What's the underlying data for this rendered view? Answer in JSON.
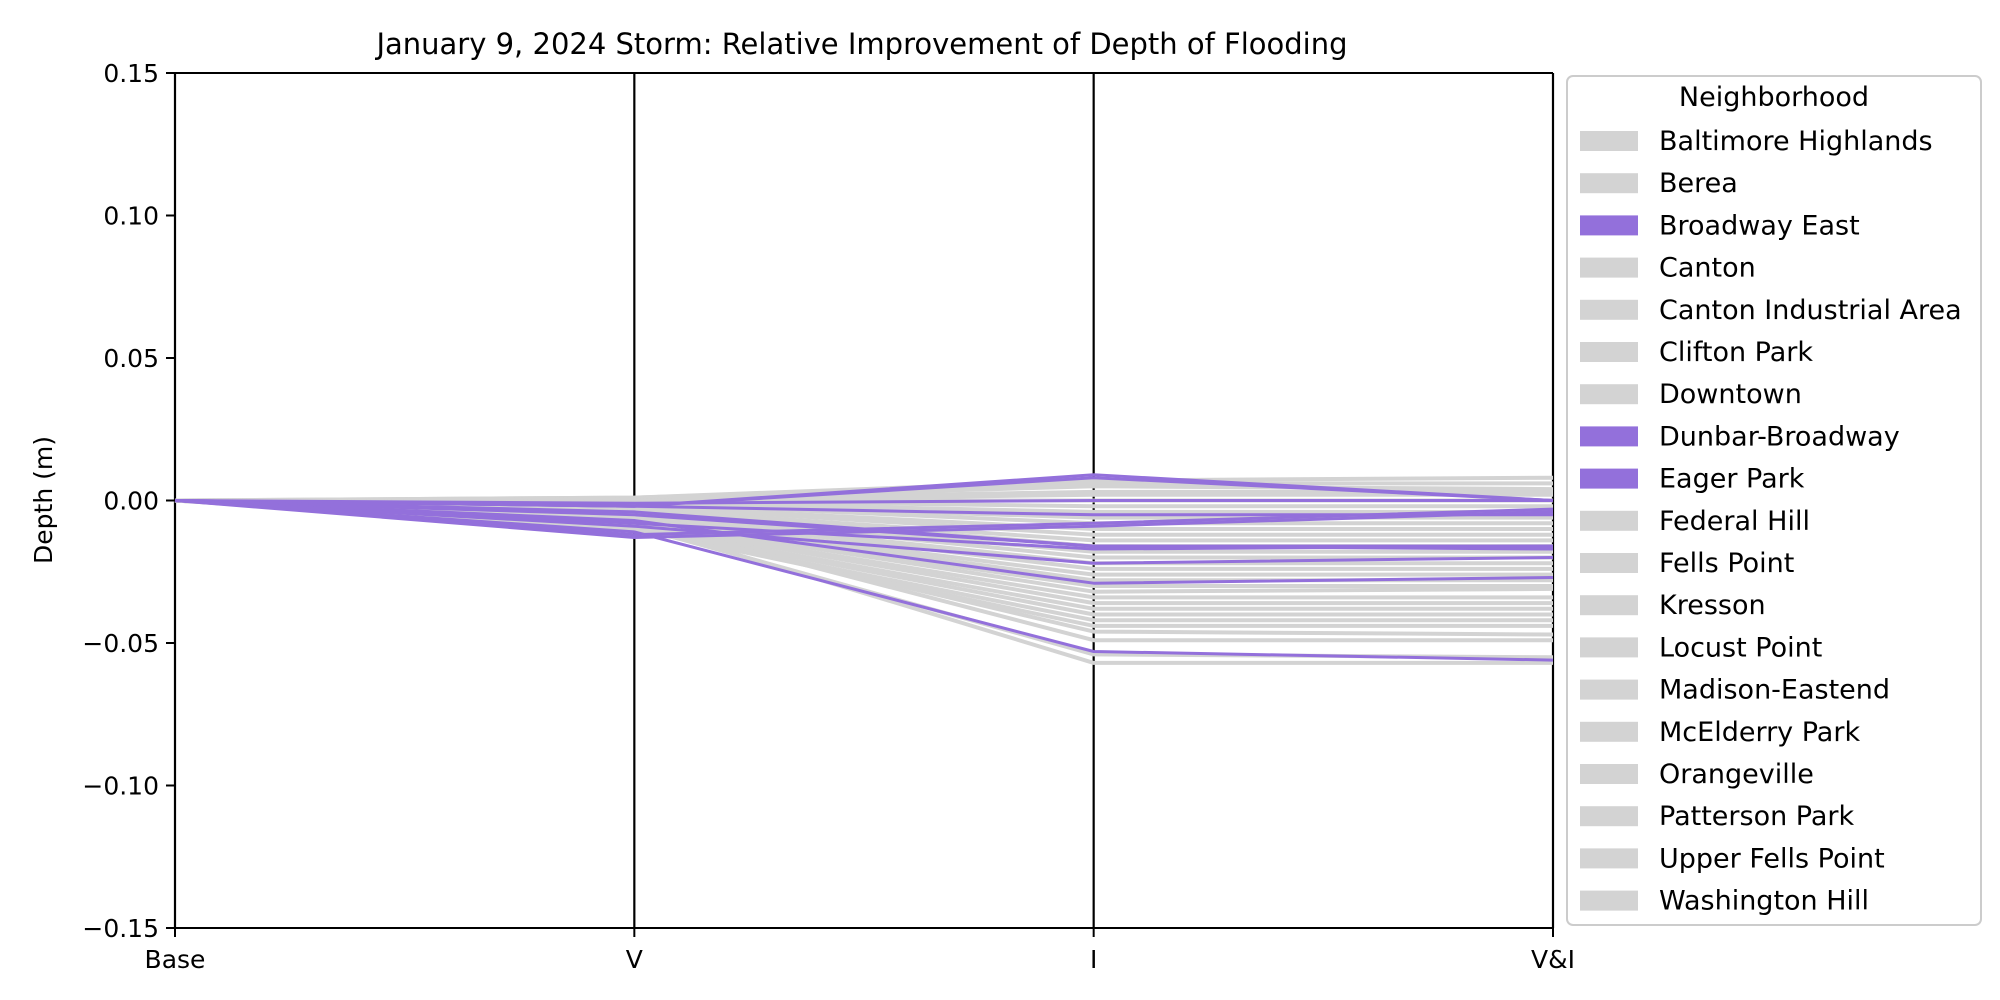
{
  "chart_data": {
    "type": "line",
    "subtype": "parallel-coordinates",
    "title": "January 9, 2024 Storm: Relative Improvement of Depth of Flooding",
    "xlabel": "",
    "ylabel": "Depth (m)",
    "categories": [
      "Base",
      "V",
      "I",
      "V&I"
    ],
    "ylim": [
      -0.15,
      0.15
    ],
    "yticks": [
      0.15,
      0.1,
      0.05,
      0.0,
      -0.05,
      -0.1,
      -0.15
    ],
    "ytick_labels": [
      "0.15",
      "0.10",
      "0.05",
      "0.00",
      "−0.05",
      "−0.10",
      "−0.15"
    ],
    "grid": false,
    "legend_title": "Neighborhood",
    "legend_position": "right",
    "colors": {
      "highlight": "#9370DB",
      "muted": "#D3D3D3",
      "axis": "#000000"
    },
    "legend": [
      {
        "label": "Baltimore Highlands",
        "color": "#D3D3D3"
      },
      {
        "label": "Berea",
        "color": "#D3D3D3"
      },
      {
        "label": "Broadway East",
        "color": "#9370DB"
      },
      {
        "label": "Canton",
        "color": "#D3D3D3"
      },
      {
        "label": "Canton Industrial Area",
        "color": "#D3D3D3"
      },
      {
        "label": "Clifton Park",
        "color": "#D3D3D3"
      },
      {
        "label": "Downtown",
        "color": "#D3D3D3"
      },
      {
        "label": "Dunbar-Broadway",
        "color": "#9370DB"
      },
      {
        "label": "Eager Park",
        "color": "#9370DB"
      },
      {
        "label": "Federal Hill",
        "color": "#D3D3D3"
      },
      {
        "label": "Fells Point",
        "color": "#D3D3D3"
      },
      {
        "label": "Kresson",
        "color": "#D3D3D3"
      },
      {
        "label": "Locust Point",
        "color": "#D3D3D3"
      },
      {
        "label": "Madison-Eastend",
        "color": "#D3D3D3"
      },
      {
        "label": "McElderry Park",
        "color": "#D3D3D3"
      },
      {
        "label": "Orangeville",
        "color": "#D3D3D3"
      },
      {
        "label": "Patterson Park",
        "color": "#D3D3D3"
      },
      {
        "label": "Upper Fells Point",
        "color": "#D3D3D3"
      },
      {
        "label": "Washington Hill",
        "color": "#D3D3D3"
      }
    ],
    "series_gray": [
      [
        0,
        0.001,
        0.007,
        0.008
      ],
      [
        0,
        0.001,
        0.006,
        0.006
      ],
      [
        0,
        0.0005,
        0.005,
        0.004
      ],
      [
        0,
        0.0005,
        0.003,
        0.003
      ],
      [
        0,
        0.0,
        0.002,
        0.002
      ],
      [
        0,
        0.0,
        0.0,
        0.0
      ],
      [
        0,
        0.0,
        -0.002,
        -0.002
      ],
      [
        0,
        -0.0005,
        -0.004,
        -0.004
      ],
      [
        0,
        -0.001,
        -0.006,
        -0.006
      ],
      [
        0,
        -0.001,
        -0.008,
        -0.008
      ],
      [
        0,
        -0.002,
        -0.01,
        -0.01
      ],
      [
        0,
        -0.002,
        -0.012,
        -0.012
      ],
      [
        0,
        -0.003,
        -0.014,
        -0.014
      ],
      [
        0,
        -0.003,
        -0.016,
        -0.016
      ],
      [
        0,
        -0.004,
        -0.018,
        -0.018
      ],
      [
        0,
        -0.004,
        -0.02,
        -0.02
      ],
      [
        0,
        -0.005,
        -0.022,
        -0.022
      ],
      [
        0,
        -0.005,
        -0.024,
        -0.024
      ],
      [
        0,
        -0.006,
        -0.026,
        -0.026
      ],
      [
        0,
        -0.006,
        -0.028,
        -0.028
      ],
      [
        0,
        -0.007,
        -0.03,
        -0.03
      ],
      [
        0,
        -0.007,
        -0.032,
        -0.031
      ],
      [
        0,
        -0.008,
        -0.034,
        -0.034
      ],
      [
        0,
        -0.008,
        -0.036,
        -0.036
      ],
      [
        0,
        -0.009,
        -0.038,
        -0.038
      ],
      [
        0,
        -0.009,
        -0.04,
        -0.04
      ],
      [
        0,
        -0.01,
        -0.042,
        -0.042
      ],
      [
        0,
        -0.01,
        -0.044,
        -0.044
      ],
      [
        0,
        -0.008,
        -0.046,
        -0.047
      ],
      [
        0,
        -0.007,
        -0.049,
        -0.049
      ],
      [
        0,
        -0.009,
        -0.054,
        -0.055
      ],
      [
        0,
        -0.008,
        -0.057,
        -0.057
      ]
    ],
    "series_purple": [
      [
        0,
        -0.002,
        0.009,
        0.0
      ],
      [
        0,
        -0.002,
        0.008,
        0.0
      ],
      [
        0,
        -0.001,
        0.0,
        0.0
      ],
      [
        0,
        -0.002,
        -0.005,
        -0.005
      ],
      [
        0,
        -0.004,
        -0.016,
        -0.017
      ],
      [
        0,
        -0.005,
        -0.016,
        -0.016
      ],
      [
        0,
        -0.008,
        -0.017,
        -0.016
      ],
      [
        0,
        -0.007,
        -0.029,
        -0.027
      ],
      [
        0,
        -0.009,
        -0.022,
        -0.02
      ],
      [
        0,
        -0.012,
        -0.008,
        -0.003
      ],
      [
        0,
        -0.011,
        -0.053,
        -0.056
      ],
      [
        0,
        -0.013,
        -0.009,
        -0.004
      ]
    ]
  }
}
